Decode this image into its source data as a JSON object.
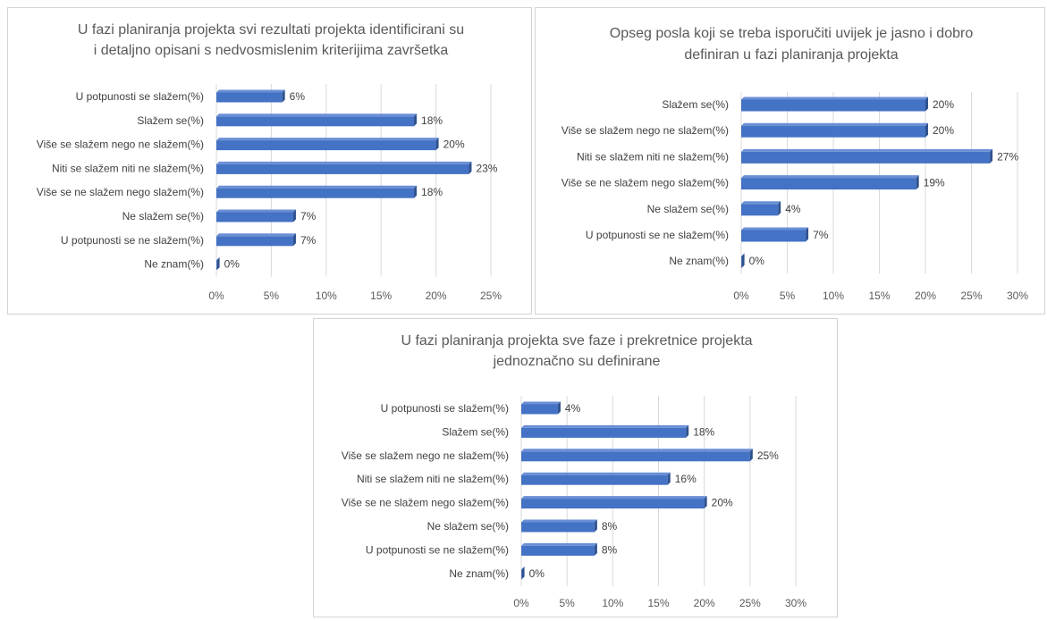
{
  "colors": {
    "bar_front": "#4472c4",
    "bar_top": "#6a8fd6",
    "bar_side": "#2f528f",
    "grid": "#d9d9d9"
  },
  "chart_data": [
    {
      "type": "bar",
      "orientation": "horizontal",
      "title": [
        "U fazi planiranja projekta svi rezultati projekta identificirani su",
        "i detaljno opisani s nedvosmislenim kriterijima završetka"
      ],
      "categories": [
        "U potpunosti se slažem(%)",
        "Slažem se(%)",
        "Više se slažem nego ne slažem(%)",
        "Niti se slažem niti ne slažem(%)",
        "Više se ne slažem nego slažem(%)",
        "Ne slažem se(%)",
        "U potpunosti se ne slažem(%)",
        "Ne znam(%)"
      ],
      "values": [
        6,
        18,
        20,
        23,
        18,
        7,
        7,
        0
      ],
      "value_labels": [
        "6%",
        "18%",
        "20%",
        "23%",
        "18%",
        "7%",
        "7%",
        "0%"
      ],
      "xlim": [
        0,
        25
      ],
      "xticks": [
        "0%",
        "5%",
        "10%",
        "15%",
        "20%",
        "25%"
      ],
      "grid": true
    },
    {
      "type": "bar",
      "orientation": "horizontal",
      "title": [
        "Opseg posla koji se treba isporučiti uvijek je jasno i dobro",
        "definiran u fazi planiranja projekta"
      ],
      "categories": [
        "Slažem se(%)",
        "Više se slažem nego ne slažem(%)",
        "Niti se slažem niti ne slažem(%)",
        "Više se ne slažem nego slažem(%)",
        "Ne slažem se(%)",
        "U potpunosti se ne slažem(%)",
        "Ne znam(%)"
      ],
      "values": [
        20,
        20,
        27,
        19,
        4,
        7,
        0
      ],
      "value_labels": [
        "20%",
        "20%",
        "27%",
        "19%",
        "4%",
        "7%",
        "0%"
      ],
      "xlim": [
        0,
        30
      ],
      "xticks": [
        "0%",
        "5%",
        "10%",
        "15%",
        "20%",
        "25%",
        "30%"
      ],
      "grid": true
    },
    {
      "type": "bar",
      "orientation": "horizontal",
      "title": [
        "U fazi planiranja projekta sve faze i prekretnice projekta",
        "jednoznačno su definirane"
      ],
      "categories": [
        "U potpunosti se slažem(%)",
        "Slažem se(%)",
        "Više se slažem nego ne slažem(%)",
        "Niti se slažem niti ne slažem(%)",
        "Više se ne slažem nego slažem(%)",
        "Ne slažem se(%)",
        "U potpunosti se ne slažem(%)",
        "Ne znam(%)"
      ],
      "values": [
        4,
        18,
        25,
        16,
        20,
        8,
        8,
        0
      ],
      "value_labels": [
        "4%",
        "18%",
        "25%",
        "16%",
        "20%",
        "8%",
        "8%",
        "0%"
      ],
      "xlim": [
        0,
        30
      ],
      "xticks": [
        "0%",
        "5%",
        "10%",
        "15%",
        "20%",
        "25%",
        "30%"
      ],
      "grid": true
    }
  ]
}
